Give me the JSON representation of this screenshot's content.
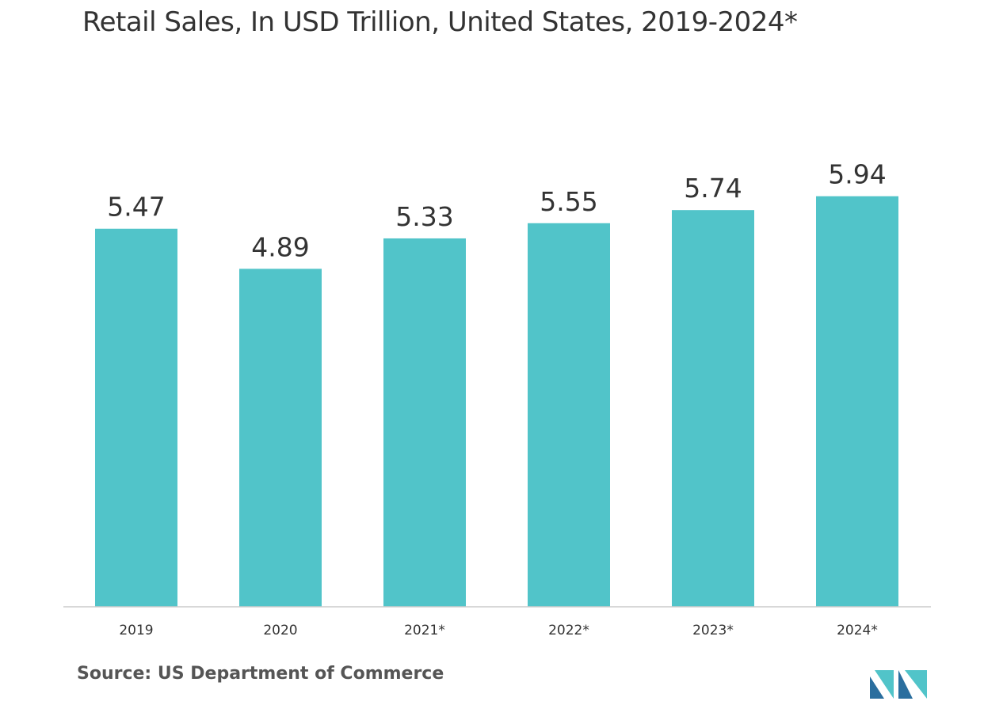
{
  "chart_data": {
    "type": "bar",
    "title": "Retail Sales, In USD Trillion, United States, 2019-2024*",
    "xlabel": "",
    "ylabel": "",
    "categories": [
      "2019",
      "2020",
      "2021*",
      "2022*",
      "2023*",
      "2024*"
    ],
    "values": [
      5.47,
      4.89,
      5.33,
      5.55,
      5.74,
      5.94
    ],
    "data_labels": [
      "5.47",
      "4.89",
      "5.33",
      "5.55",
      "5.74",
      "5.94"
    ],
    "ylim": [
      0,
      6.0
    ],
    "grid": false,
    "legend": "none",
    "bar_color": "#51c4c9",
    "axis_color": "#cccccc"
  },
  "source": "Source: US Department of Commerce",
  "logo": {
    "icon": "company-logo-icon",
    "colors": [
      "#2a6e9e",
      "#51c4c9"
    ]
  }
}
